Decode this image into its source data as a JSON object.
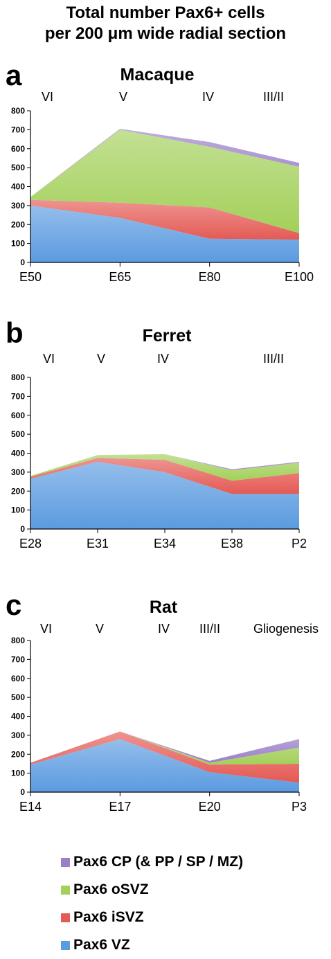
{
  "title_line1": "Total number Pax6+ cells",
  "title_line2": "per 200 μm wide radial section",
  "legend": [
    {
      "label": "Pax6 CP (& PP / SP / MZ)",
      "color": "#9b80c8"
    },
    {
      "label": "Pax6 oSVZ",
      "color": "#a3d05a"
    },
    {
      "label": "Pax6 iSVZ",
      "color": "#e45a55"
    },
    {
      "label": "Pax6 VZ",
      "color": "#5b9be0"
    }
  ],
  "chart_data": [
    {
      "type": "area",
      "panel": "a",
      "title": "Macaque",
      "stages": [
        "VI",
        "V",
        "IV",
        "III/II"
      ],
      "categories": [
        "E50",
        "E65",
        "E80",
        "E100"
      ],
      "ylim": [
        0,
        800
      ],
      "yticks": [
        "0",
        "100",
        "200",
        "300",
        "400",
        "500",
        "600",
        "700",
        "800"
      ],
      "series": [
        {
          "name": "Pax6 VZ",
          "values": [
            300,
            235,
            125,
            120
          ]
        },
        {
          "name": "Pax6 iSVZ",
          "values": [
            30,
            80,
            165,
            35
          ]
        },
        {
          "name": "Pax6 oSVZ",
          "values": [
            15,
            385,
            320,
            350
          ]
        },
        {
          "name": "Pax6 CP (& PP / SP / MZ)",
          "values": [
            0,
            5,
            25,
            20
          ]
        }
      ]
    },
    {
      "type": "area",
      "panel": "b",
      "title": "Ferret",
      "stages": [
        "VI",
        "V",
        "IV",
        "III/II"
      ],
      "categories": [
        "E28",
        "E31",
        "E34",
        "E38",
        "P2"
      ],
      "ylim": [
        0,
        800
      ],
      "yticks": [
        "0",
        "100",
        "200",
        "300",
        "400",
        "500",
        "600",
        "700",
        "800"
      ],
      "series": [
        {
          "name": "Pax6 VZ",
          "values": [
            265,
            355,
            300,
            185,
            185
          ]
        },
        {
          "name": "Pax6 iSVZ",
          "values": [
            10,
            20,
            65,
            70,
            110
          ]
        },
        {
          "name": "Pax6 oSVZ",
          "values": [
            5,
            15,
            30,
            55,
            55
          ]
        },
        {
          "name": "Pax6 CP (& PP / SP / MZ)",
          "values": [
            0,
            0,
            0,
            5,
            5
          ]
        }
      ]
    },
    {
      "type": "area",
      "panel": "c",
      "title": "Rat",
      "stages": [
        "VI",
        "V",
        "IV",
        "III/II",
        "Gliogenesis"
      ],
      "categories": [
        "E14",
        "E17",
        "E20",
        "P3"
      ],
      "ylim": [
        0,
        800
      ],
      "yticks": [
        "0",
        "100",
        "200",
        "300",
        "400",
        "500",
        "600",
        "700",
        "800"
      ],
      "series": [
        {
          "name": "Pax6 VZ",
          "values": [
            145,
            280,
            105,
            50
          ]
        },
        {
          "name": "Pax6 iSVZ",
          "values": [
            10,
            40,
            40,
            100
          ]
        },
        {
          "name": "Pax6 oSVZ",
          "values": [
            0,
            0,
            10,
            85
          ]
        },
        {
          "name": "Pax6 CP (& PP / SP / MZ)",
          "values": [
            0,
            0,
            10,
            45
          ]
        }
      ]
    }
  ]
}
